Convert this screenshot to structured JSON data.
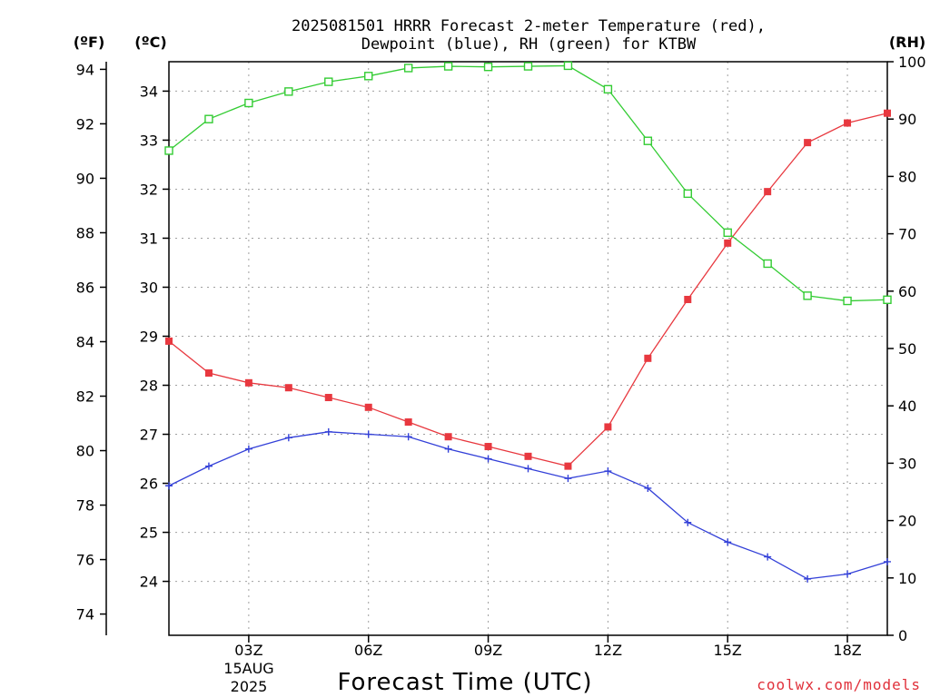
{
  "chart_data": {
    "type": "line",
    "title_line1": "2025081501 HRRR Forecast 2-meter Temperature (red),",
    "title_line2": "Dewpoint (blue), RH (green) for KTBW",
    "xlabel": "Forecast Time (UTC)",
    "credit": "coolwx.com/models",
    "units": {
      "fahrenheit": "(ºF)",
      "celsius": "(ºC)",
      "rh": "(RH)"
    },
    "x_hours": [
      1,
      2,
      3,
      4,
      5,
      6,
      7,
      8,
      9,
      10,
      11,
      12,
      13,
      14,
      15,
      16,
      17,
      18,
      19
    ],
    "xlim": [
      1,
      19
    ],
    "x_ticks": [
      {
        "hour": 3,
        "label": "03Z"
      },
      {
        "hour": 6,
        "label": "06Z"
      },
      {
        "hour": 9,
        "label": "09Z"
      },
      {
        "hour": 12,
        "label": "12Z"
      },
      {
        "hour": 15,
        "label": "15Z"
      },
      {
        "hour": 18,
        "label": "18Z"
      }
    ],
    "date_labels": [
      "15AUG",
      "2025"
    ],
    "celsius_axis": {
      "ylim": [
        22.9,
        34.6
      ],
      "ticks": [
        24,
        25,
        26,
        27,
        28,
        29,
        30,
        31,
        32,
        33,
        34
      ]
    },
    "fahrenheit_axis": {
      "ticks": [
        74,
        76,
        78,
        80,
        82,
        84,
        86,
        88,
        90,
        92,
        94
      ]
    },
    "rh_axis": {
      "ylim": [
        0,
        100
      ],
      "ticks": [
        0,
        10,
        20,
        30,
        40,
        50,
        60,
        70,
        80,
        90,
        100
      ]
    },
    "grid": true,
    "series": [
      {
        "name": "Temperature",
        "axis": "celsius",
        "color": "#e8383f",
        "marker": "filled-square",
        "values": [
          28.9,
          28.25,
          28.05,
          27.95,
          27.75,
          27.55,
          27.25,
          26.95,
          26.75,
          26.55,
          26.35,
          27.15,
          28.55,
          29.75,
          30.9,
          31.95,
          32.95,
          33.35,
          33.55
        ]
      },
      {
        "name": "Dewpoint",
        "axis": "celsius",
        "color": "#3340d8",
        "marker": "plus",
        "values": [
          25.95,
          26.35,
          26.7,
          26.93,
          27.05,
          27.0,
          26.95,
          26.7,
          26.5,
          26.3,
          26.1,
          26.25,
          25.9,
          25.2,
          24.8,
          24.5,
          24.05,
          24.15,
          24.4
        ]
      },
      {
        "name": "RH",
        "axis": "rh",
        "color": "#33cc33",
        "marker": "open-square",
        "values": [
          84.5,
          90.0,
          92.8,
          94.8,
          96.5,
          97.5,
          98.9,
          99.2,
          99.1,
          99.2,
          99.3,
          95.2,
          86.2,
          77.0,
          70.2,
          64.8,
          59.2,
          58.3,
          58.5
        ]
      }
    ]
  }
}
